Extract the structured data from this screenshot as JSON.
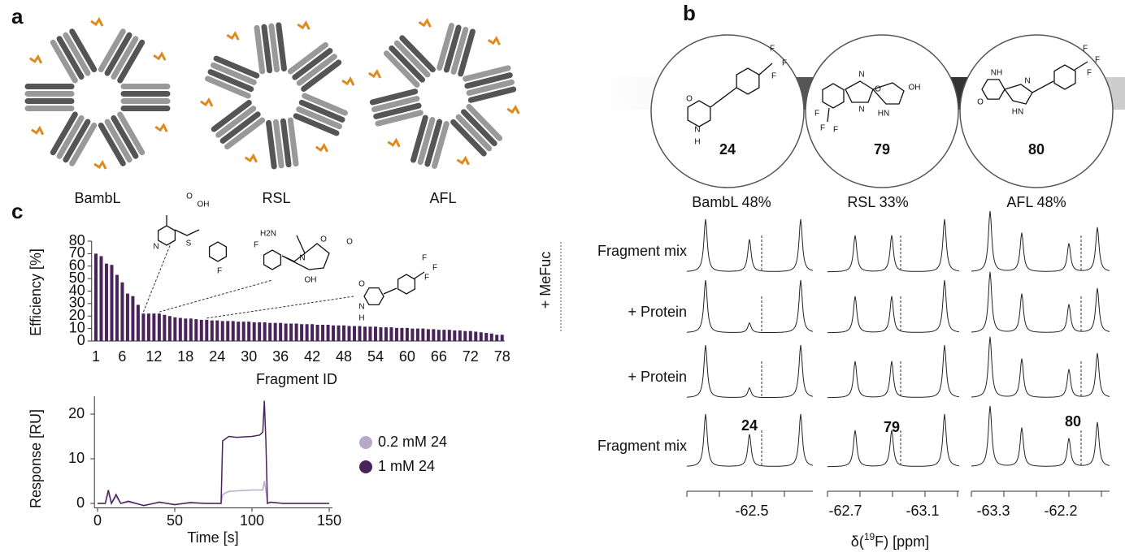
{
  "panels": {
    "a": {
      "label": "a",
      "proteins": [
        "BambL",
        "RSL",
        "AFL"
      ]
    },
    "b": {
      "label": "b",
      "ligands": [
        "24",
        "79",
        "80"
      ],
      "ligand_atoms": [
        [
          "F",
          "F",
          "F",
          "O",
          "N",
          "H"
        ],
        [
          "N",
          "O",
          "N",
          "HN",
          "OH",
          "F",
          "F",
          "F"
        ],
        [
          "NH",
          "O",
          "N",
          "HN",
          "F",
          "F",
          "F"
        ]
      ],
      "columns": [
        "BambL 48%",
        "RSL 33%",
        "AFL 48%"
      ],
      "rows": [
        "Fragment mix",
        "+ Protein",
        "+ Protein",
        "Fragment mix"
      ],
      "condition": "+ MeFuc",
      "spectrum_labels": [
        "24",
        "79",
        "80"
      ],
      "ppm_ticks": [
        "-62.5",
        "-62.7",
        "-63.1",
        "-63.3",
        "-62.2"
      ],
      "axis_label": [
        "δ(",
        "19",
        "F) [ppm]"
      ]
    },
    "c": {
      "label": "c",
      "insert_atoms": [
        [
          "O",
          "OH",
          "N",
          "S",
          "F"
        ],
        [
          "H2N",
          "F",
          "N",
          "OH",
          "O",
          "O"
        ],
        [
          "O",
          "N",
          "H",
          "F",
          "F",
          "F"
        ]
      ]
    }
  },
  "chart_data": [
    {
      "type": "bar",
      "ylabel": "Efficiency [%]",
      "xlabel": "Fragment ID",
      "color": "#4a235a",
      "categories": [
        1,
        null,
        null,
        null,
        null,
        6,
        null,
        null,
        null,
        null,
        null,
        12,
        null,
        null,
        null,
        null,
        null,
        18,
        null,
        null,
        null,
        null,
        null,
        24,
        null,
        null,
        null,
        null,
        null,
        30,
        null,
        null,
        null,
        null,
        null,
        36,
        null,
        null,
        null,
        null,
        null,
        42,
        null,
        null,
        null,
        null,
        null,
        48,
        null,
        null,
        null,
        null,
        null,
        54,
        null,
        null,
        null,
        null,
        null,
        60,
        null,
        null,
        null,
        null,
        null,
        66,
        null,
        null,
        null,
        null,
        null,
        72,
        null,
        null,
        null,
        null,
        null,
        78
      ],
      "values": [
        70,
        68,
        62,
        61,
        53,
        47,
        38,
        36,
        29,
        22,
        22,
        22,
        22,
        21,
        20,
        19,
        18.5,
        18,
        18,
        17.5,
        17,
        17,
        16.5,
        16.5,
        16,
        16,
        16,
        15.5,
        15.5,
        15.5,
        15,
        15,
        15,
        14.5,
        14.5,
        14.5,
        14,
        14,
        14,
        13.5,
        13.5,
        13.5,
        13,
        13,
        13,
        12.5,
        12.5,
        12.5,
        12,
        12,
        12,
        11.5,
        11.5,
        11.5,
        11,
        11,
        11,
        10.5,
        10.5,
        10.5,
        10,
        10,
        10,
        9.5,
        9.5,
        9,
        9,
        9,
        8.5,
        8.5,
        8,
        8,
        7.5,
        7,
        6.5,
        6,
        5,
        5
      ],
      "ylim": [
        0,
        80
      ],
      "yticks": [
        0,
        10,
        20,
        30,
        40,
        50,
        60,
        70,
        80
      ]
    },
    {
      "type": "line",
      "ylabel": "Response [RU]",
      "xlabel": "Time [s]",
      "x": [
        0,
        5,
        7,
        9,
        12,
        15,
        20,
        30,
        40,
        50,
        60,
        70,
        79,
        80,
        81,
        85,
        90,
        100,
        105,
        107,
        108,
        109,
        110,
        112,
        120,
        130,
        140,
        150
      ],
      "series": [
        {
          "name": "0.2 mM 24",
          "color": "#b8a9c9",
          "values": [
            0,
            0,
            2.5,
            0,
            1.5,
            0,
            0.3,
            -0.4,
            0.2,
            -0.2,
            0.1,
            0,
            0,
            0,
            2,
            2.7,
            2.8,
            3,
            3,
            3,
            5,
            3,
            0,
            0.2,
            0,
            0,
            0,
            0
          ]
        },
        {
          "name": "1 mM 24",
          "color": "#4a235a",
          "values": [
            0,
            0,
            3,
            0,
            2,
            0,
            0.5,
            -0.5,
            0.3,
            -0.3,
            0.2,
            0,
            0,
            0,
            14,
            15,
            14.8,
            15,
            15.3,
            16,
            23,
            14,
            0,
            0.3,
            0,
            0,
            0,
            0
          ]
        }
      ],
      "xlim": [
        -2,
        152
      ],
      "ylim": [
        -1,
        24
      ],
      "xticks": [
        0,
        50,
        100,
        150
      ],
      "yticks": [
        0,
        10,
        20
      ]
    }
  ]
}
